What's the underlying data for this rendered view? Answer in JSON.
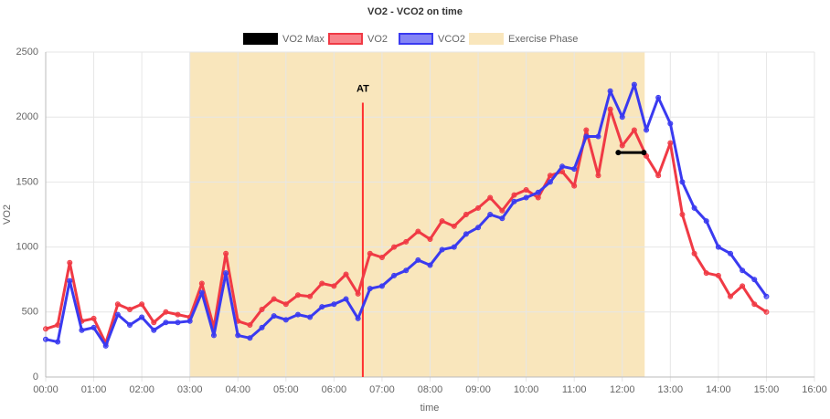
{
  "chart_data": {
    "type": "line",
    "title": "VO2 - VCO2 on time",
    "xlabel": "time",
    "ylabel": "VO2",
    "grid": true,
    "xlim": [
      0,
      960
    ],
    "ylim": [
      0,
      2500
    ],
    "xticks": [
      {
        "value": 0,
        "label": "00:00"
      },
      {
        "value": 60,
        "label": "01:00"
      },
      {
        "value": 120,
        "label": "02:00"
      },
      {
        "value": 180,
        "label": "03:00"
      },
      {
        "value": 240,
        "label": "04:00"
      },
      {
        "value": 300,
        "label": "05:00"
      },
      {
        "value": 360,
        "label": "06:00"
      },
      {
        "value": 420,
        "label": "07:00"
      },
      {
        "value": 480,
        "label": "08:00"
      },
      {
        "value": 540,
        "label": "09:00"
      },
      {
        "value": 600,
        "label": "10:00"
      },
      {
        "value": 660,
        "label": "11:00"
      },
      {
        "value": 720,
        "label": "12:00"
      },
      {
        "value": 780,
        "label": "13:00"
      },
      {
        "value": 840,
        "label": "14:00"
      },
      {
        "value": 900,
        "label": "15:00"
      },
      {
        "value": 960,
        "label": "16:00"
      }
    ],
    "yticks": [
      0,
      500,
      1000,
      1500,
      2000,
      2500
    ],
    "vo2_max": {
      "name": "VO2 Max",
      "color": "#000000",
      "x": [
        715,
        747
      ],
      "values": [
        1727,
        1727
      ]
    },
    "exercise_phase": {
      "name": "Exercise Phase",
      "color": "#f9e6bc",
      "x": [
        180,
        748
      ]
    },
    "at": {
      "label": "AT",
      "color": "#ff3030",
      "x": 396,
      "values": [
        0,
        2110
      ]
    },
    "x": [
      0,
      15,
      30,
      45,
      60,
      75,
      90,
      105,
      120,
      135,
      150,
      165,
      180,
      195,
      210,
      225,
      240,
      255,
      270,
      285,
      300,
      315,
      330,
      345,
      360,
      375,
      390,
      405,
      420,
      435,
      450,
      465,
      480,
      495,
      510,
      525,
      540,
      555,
      570,
      585,
      600,
      615,
      630,
      645,
      660,
      675,
      690,
      705,
      720,
      735,
      750,
      765,
      780,
      795,
      810,
      825,
      840,
      855,
      870,
      885,
      900
    ],
    "series": [
      {
        "name": "VO2",
        "color": "#f03a45",
        "values": [
          370,
          400,
          880,
          430,
          450,
          260,
          560,
          520,
          560,
          420,
          500,
          480,
          460,
          720,
          380,
          950,
          430,
          400,
          520,
          600,
          560,
          630,
          620,
          720,
          700,
          790,
          640,
          950,
          920,
          1000,
          1040,
          1120,
          1060,
          1200,
          1160,
          1250,
          1300,
          1380,
          1280,
          1400,
          1440,
          1380,
          1550,
          1580,
          1470,
          1900,
          1550,
          2060,
          1780,
          1900,
          1700,
          1550,
          1800,
          1250,
          950,
          800,
          780,
          620,
          700,
          560,
          500
        ]
      },
      {
        "name": "VCO2",
        "color": "#3a3af0",
        "values": [
          290,
          270,
          740,
          360,
          380,
          240,
          480,
          400,
          460,
          360,
          420,
          420,
          430,
          650,
          320,
          800,
          320,
          300,
          380,
          470,
          440,
          480,
          460,
          540,
          560,
          600,
          450,
          680,
          700,
          780,
          820,
          900,
          860,
          980,
          1000,
          1100,
          1150,
          1250,
          1220,
          1350,
          1380,
          1420,
          1500,
          1620,
          1600,
          1850,
          1850,
          2200,
          2000,
          2250,
          1900,
          2150,
          1950,
          1500,
          1300,
          1200,
          1000,
          950,
          820,
          750,
          620
        ]
      }
    ]
  }
}
